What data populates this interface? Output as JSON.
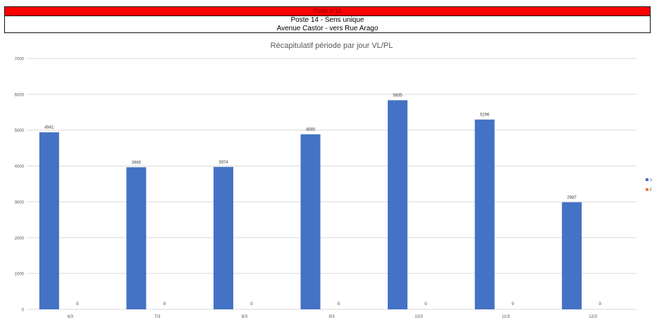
{
  "header": {
    "banner": "Poste n°14",
    "line1": "Poste 14 - Sens unique",
    "line2": "Avenue Castor - vers Rue Arago"
  },
  "chart_data": {
    "type": "bar",
    "title": "Récapitulatif période par jour VL/PL",
    "xlabel": "",
    "ylabel": "",
    "categories": [
      "6/3",
      "7/3",
      "8/3",
      "9/3",
      "10/3",
      "11/3",
      "12/3"
    ],
    "series": [
      {
        "name": "VL",
        "color": "#4472c4",
        "values": [
          4941,
          3965,
          3974,
          4885,
          5835,
          5296,
          2987
        ]
      },
      {
        "name": "PL",
        "color": "#ed7d31",
        "values": [
          0,
          0,
          0,
          0,
          0,
          0,
          0
        ]
      }
    ],
    "value_labels": [
      [
        "4941",
        "3965",
        "3974",
        "4885",
        "5835",
        "5296",
        "2987"
      ],
      [
        "0",
        "0",
        "0",
        "0",
        "0",
        "0",
        "0"
      ]
    ],
    "ylim": [
      0,
      7000
    ],
    "yticks": [
      "0",
      "1000",
      "2000",
      "3000",
      "4000",
      "5000",
      "6000",
      "7000"
    ],
    "grid": true,
    "legend": "right",
    "gridline_color": "#d9d9d9"
  }
}
